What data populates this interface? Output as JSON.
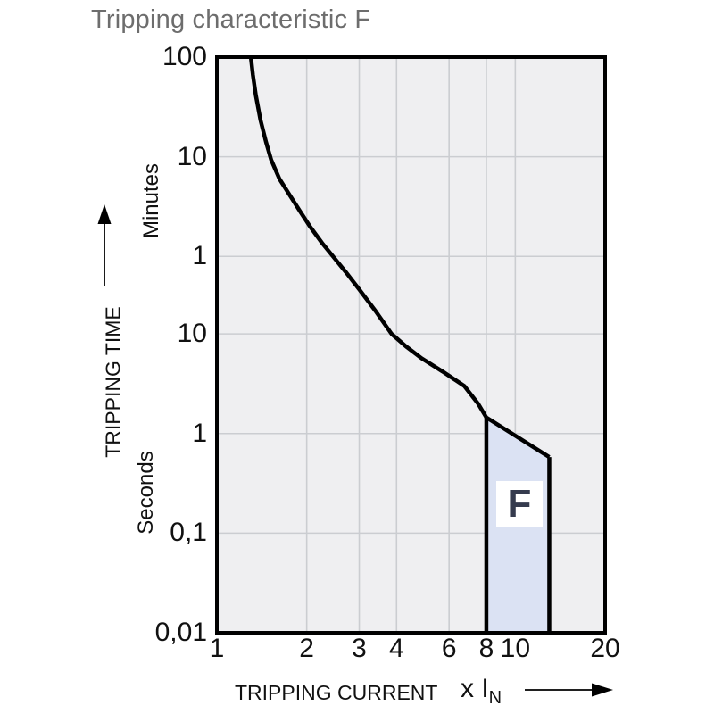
{
  "title": "Tripping characteristic F",
  "y_axis": {
    "title": "TRIPPING TIME",
    "unit_upper": "Minutes",
    "unit_lower": "Seconds",
    "ticks": [
      {
        "label": "100",
        "seconds": 6000
      },
      {
        "label": "10",
        "seconds": 600
      },
      {
        "label": "1",
        "seconds": 60
      },
      {
        "label": "10",
        "seconds": 10
      },
      {
        "label": "1",
        "seconds": 1
      },
      {
        "label": "0,1",
        "seconds": 0.1
      },
      {
        "label": "0,01",
        "seconds": 0.01
      }
    ]
  },
  "x_axis": {
    "title": "TRIPPING CURRENT",
    "unit_prefix": "x I",
    "unit_subscript": "N",
    "ticks": [
      {
        "label": "1",
        "value": 1
      },
      {
        "label": "2",
        "value": 2
      },
      {
        "label": "3",
        "value": 3
      },
      {
        "label": "4",
        "value": 4
      },
      {
        "label": "6",
        "value": 6
      },
      {
        "label": "8",
        "value": 8
      },
      {
        "label": "10",
        "value": 10
      },
      {
        "label": "20",
        "value": 20
      }
    ]
  },
  "region_label": "F",
  "colors": {
    "plot_bg": "#efeff1",
    "grid": "#cbcdd1",
    "line": "#000000",
    "band_fill": "#dbe2f3",
    "band_label_bg": "#ffffff",
    "band_label_text": "#353b4e",
    "title_text": "#6d6d6d",
    "axis_text": "#111111"
  },
  "chart_data": {
    "type": "line",
    "title": "Tripping characteristic F",
    "xlabel": "TRIPPING CURRENT (x IN)",
    "ylabel": "TRIPPING TIME (minutes above 60 s, seconds below)",
    "x_scale": "log",
    "y_scale": "log",
    "grid": true,
    "x_range": [
      1,
      20
    ],
    "y_range_seconds": [
      0.01,
      6000
    ],
    "x_gridlines": [
      2,
      3,
      4,
      6,
      8,
      10
    ],
    "y_gridlines_seconds": [
      600,
      60,
      10,
      1,
      0.1
    ],
    "curve_name": "tripping-characteristic-F-curve",
    "curve_points_x_multiple_vs_seconds": [
      [
        1.3,
        6000
      ],
      [
        1.32,
        4000
      ],
      [
        1.35,
        2500
      ],
      [
        1.4,
        1400
      ],
      [
        1.46,
        850
      ],
      [
        1.52,
        560
      ],
      [
        1.62,
        360
      ],
      [
        1.75,
        250
      ],
      [
        1.9,
        170
      ],
      [
        2.05,
        120
      ],
      [
        2.25,
        82
      ],
      [
        2.45,
        60
      ],
      [
        2.7,
        42
      ],
      [
        3.0,
        28
      ],
      [
        3.4,
        17
      ],
      [
        3.85,
        10
      ],
      [
        4.3,
        7.5
      ],
      [
        4.85,
        5.7
      ],
      [
        5.7,
        4.2
      ],
      [
        6.75,
        3.0
      ],
      [
        7.5,
        2.0
      ],
      [
        8.0,
        1.45
      ],
      [
        13.0,
        0.58
      ]
    ],
    "band": {
      "label": "F",
      "x_from": 8,
      "x_to": 13,
      "t_top_at_x_from": 1.45,
      "t_top_at_x_to": 0.58,
      "t_bottom": 0.01
    }
  }
}
